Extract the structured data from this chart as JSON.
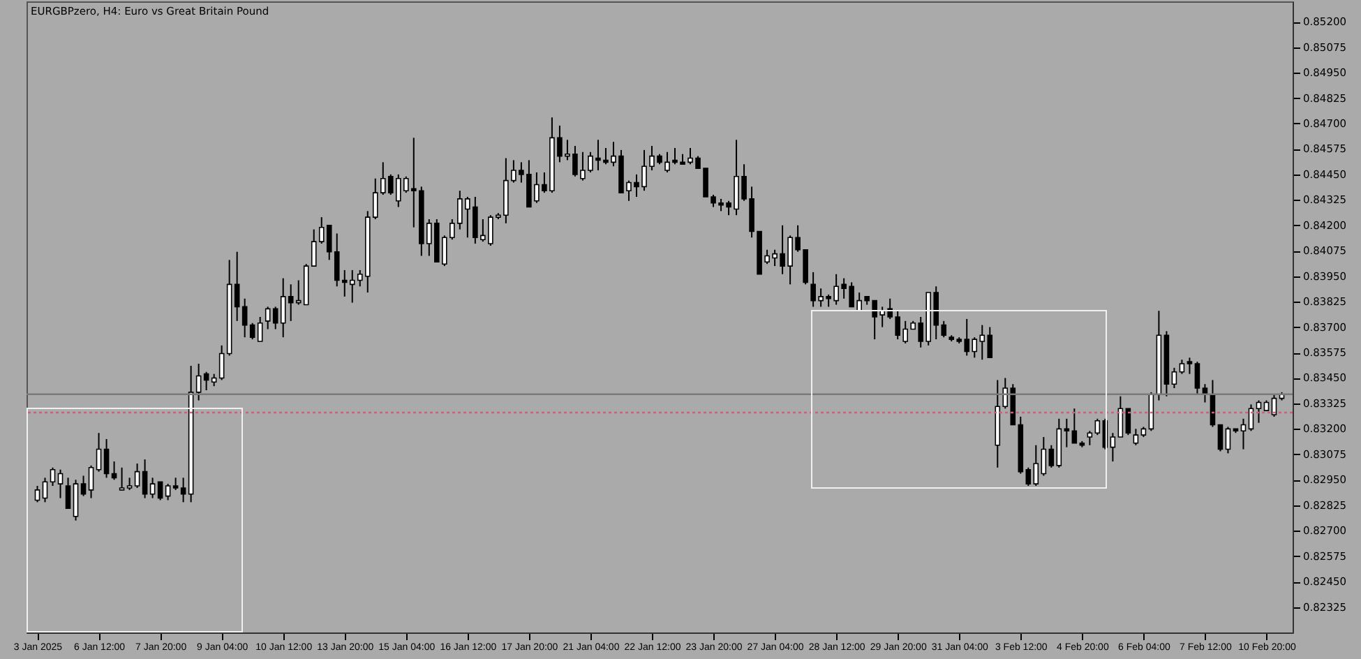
{
  "chart_data": {
    "type": "candlestick",
    "title": "EURGBPzero, H4: Euro vs Great Britain Pound",
    "categories": [
      "3 Jan 2025",
      null,
      null,
      null,
      null,
      null,
      null,
      null,
      "6 Jan 12:00",
      null,
      null,
      null,
      null,
      null,
      null,
      null,
      "7 Jan 20:00",
      null,
      null,
      null,
      null,
      null,
      null,
      null,
      "9 Jan 04:00",
      null,
      null,
      null,
      null,
      null,
      null,
      null,
      "10 Jan 12:00",
      null,
      null,
      null,
      null,
      null,
      null,
      null,
      "13 Jan 20:00",
      null,
      null,
      null,
      null,
      null,
      null,
      null,
      "15 Jan 04:00",
      null,
      null,
      null,
      null,
      null,
      null,
      null,
      "16 Jan 12:00",
      null,
      null,
      null,
      null,
      null,
      null,
      null,
      "17 Jan 20:00",
      null,
      null,
      null,
      null,
      null,
      null,
      null,
      "21 Jan 04:00",
      null,
      null,
      null,
      null,
      null,
      null,
      null,
      "22 Jan 12:00",
      null,
      null,
      null,
      null,
      null,
      null,
      null,
      "23 Jan 20:00",
      null,
      null,
      null,
      null,
      null,
      null,
      null,
      "27 Jan 04:00",
      null,
      null,
      null,
      null,
      null,
      null,
      null,
      "28 Jan 12:00",
      null,
      null,
      null,
      null,
      null,
      null,
      null,
      "29 Jan 20:00",
      null,
      null,
      null,
      null,
      null,
      null,
      null,
      "31 Jan 04:00",
      null,
      null,
      null,
      null,
      null,
      null,
      null,
      "3 Feb 12:00",
      null,
      null,
      null,
      null,
      null,
      null,
      null,
      "4 Feb 20:00",
      null,
      null,
      null,
      null,
      null,
      null,
      null,
      "6 Feb 04:00",
      null,
      null,
      null,
      null,
      null,
      null,
      null,
      "7 Feb 12:00",
      null,
      null,
      null,
      null,
      null,
      null,
      null,
      "10 Feb 20:00",
      null,
      null
    ],
    "ohlc": [
      [
        0.8285,
        0.8292,
        0.8284,
        0.829
      ],
      [
        0.8286,
        0.8296,
        0.8284,
        0.8294
      ],
      [
        0.8294,
        0.8301,
        0.8292,
        0.83
      ],
      [
        0.8293,
        0.83,
        0.8286,
        0.8298
      ],
      [
        0.8292,
        0.8296,
        0.8281,
        0.8281
      ],
      [
        0.8277,
        0.8295,
        0.8275,
        0.8293
      ],
      [
        0.8293,
        0.8297,
        0.8287,
        0.8288
      ],
      [
        0.829,
        0.8302,
        0.8286,
        0.8301
      ],
      [
        0.83,
        0.8318,
        0.8299,
        0.831
      ],
      [
        0.831,
        0.8315,
        0.8296,
        0.8298
      ],
      [
        0.8298,
        0.8304,
        0.8295,
        0.8296
      ],
      [
        0.829,
        0.8301,
        0.829,
        0.8291
      ],
      [
        0.8291,
        0.8296,
        0.829,
        0.8292
      ],
      [
        0.8292,
        0.8303,
        0.8291,
        0.8299
      ],
      [
        0.8299,
        0.8305,
        0.8286,
        0.8288
      ],
      [
        0.8288,
        0.8296,
        0.8286,
        0.8293
      ],
      [
        0.8294,
        0.8294,
        0.8285,
        0.8286
      ],
      [
        0.8287,
        0.8293,
        0.8285,
        0.8292
      ],
      [
        0.8292,
        0.8296,
        0.829,
        0.8291
      ],
      [
        0.8291,
        0.8296,
        0.8284,
        0.8288
      ],
      [
        0.8288,
        0.8351,
        0.8284,
        0.8338
      ],
      [
        0.8338,
        0.8352,
        0.8334,
        0.8346
      ],
      [
        0.8347,
        0.8348,
        0.8339,
        0.8344
      ],
      [
        0.8343,
        0.8347,
        0.8341,
        0.8345
      ],
      [
        0.8345,
        0.8361,
        0.8344,
        0.8357
      ],
      [
        0.8357,
        0.8403,
        0.8356,
        0.8391
      ],
      [
        0.8391,
        0.8407,
        0.8373,
        0.838
      ],
      [
        0.838,
        0.8384,
        0.8365,
        0.8371
      ],
      [
        0.8371,
        0.8372,
        0.8364,
        0.8365
      ],
      [
        0.8363,
        0.8375,
        0.8363,
        0.8372
      ],
      [
        0.8373,
        0.838,
        0.8369,
        0.8379
      ],
      [
        0.8379,
        0.838,
        0.8369,
        0.8372
      ],
      [
        0.8372,
        0.8394,
        0.8365,
        0.8385
      ],
      [
        0.8385,
        0.8391,
        0.8373,
        0.8382
      ],
      [
        0.8382,
        0.8393,
        0.8381,
        0.8383
      ],
      [
        0.8381,
        0.8401,
        0.8381,
        0.84
      ],
      [
        0.84,
        0.8418,
        0.84,
        0.8412
      ],
      [
        0.8412,
        0.8424,
        0.8411,
        0.8419
      ],
      [
        0.842,
        0.842,
        0.8403,
        0.8407
      ],
      [
        0.8407,
        0.8416,
        0.839,
        0.8393
      ],
      [
        0.8393,
        0.8398,
        0.8385,
        0.8392
      ],
      [
        0.8391,
        0.8398,
        0.8382,
        0.8393
      ],
      [
        0.8393,
        0.8398,
        0.839,
        0.8396
      ],
      [
        0.8395,
        0.8427,
        0.8387,
        0.8424
      ],
      [
        0.8424,
        0.8443,
        0.8423,
        0.8436
      ],
      [
        0.8436,
        0.8451,
        0.8435,
        0.8443
      ],
      [
        0.8444,
        0.8445,
        0.8435,
        0.8436
      ],
      [
        0.8432,
        0.8445,
        0.8429,
        0.8443
      ],
      [
        0.8437,
        0.8444,
        0.8436,
        0.8443
      ],
      [
        0.8438,
        0.8463,
        0.8419,
        0.8437
      ],
      [
        0.8437,
        0.8439,
        0.8405,
        0.8411
      ],
      [
        0.8411,
        0.8423,
        0.8405,
        0.8421
      ],
      [
        0.8421,
        0.8423,
        0.8402,
        0.8402
      ],
      [
        0.8401,
        0.8415,
        0.84,
        0.8414
      ],
      [
        0.8414,
        0.8423,
        0.8413,
        0.8421
      ],
      [
        0.8421,
        0.8437,
        0.8418,
        0.8433
      ],
      [
        0.8428,
        0.8434,
        0.8414,
        0.8433
      ],
      [
        0.8429,
        0.8434,
        0.8411,
        0.8414
      ],
      [
        0.8413,
        0.8423,
        0.8412,
        0.8415
      ],
      [
        0.8411,
        0.8425,
        0.841,
        0.8424
      ],
      [
        0.8424,
        0.8426,
        0.8423,
        0.8425
      ],
      [
        0.8425,
        0.8453,
        0.8421,
        0.8442
      ],
      [
        0.8442,
        0.8452,
        0.8441,
        0.8447
      ],
      [
        0.8447,
        0.8451,
        0.8441,
        0.8445
      ],
      [
        0.8445,
        0.8452,
        0.8429,
        0.8429
      ],
      [
        0.8432,
        0.8446,
        0.8431,
        0.844
      ],
      [
        0.844,
        0.8446,
        0.8436,
        0.8437
      ],
      [
        0.8437,
        0.8473,
        0.8436,
        0.8463
      ],
      [
        0.8463,
        0.8469,
        0.8451,
        0.8454
      ],
      [
        0.8454,
        0.8462,
        0.8452,
        0.8455
      ],
      [
        0.8455,
        0.8459,
        0.8444,
        0.8445
      ],
      [
        0.8443,
        0.8456,
        0.8442,
        0.8447
      ],
      [
        0.8447,
        0.8456,
        0.8446,
        0.8454
      ],
      [
        0.8453,
        0.8462,
        0.8447,
        0.8452
      ],
      [
        0.8452,
        0.8458,
        0.845,
        0.8451
      ],
      [
        0.8451,
        0.8461,
        0.8449,
        0.8454
      ],
      [
        0.8454,
        0.8457,
        0.8436,
        0.8436
      ],
      [
        0.8437,
        0.8442,
        0.8432,
        0.8441
      ],
      [
        0.8441,
        0.8445,
        0.8434,
        0.8439
      ],
      [
        0.8439,
        0.8457,
        0.8437,
        0.8449
      ],
      [
        0.8449,
        0.8459,
        0.8447,
        0.8454
      ],
      [
        0.8454,
        0.8455,
        0.845,
        0.8451
      ],
      [
        0.8447,
        0.8456,
        0.8446,
        0.8451
      ],
      [
        0.8452,
        0.8458,
        0.845,
        0.8451
      ],
      [
        0.8451,
        0.8455,
        0.845,
        0.845
      ],
      [
        0.8451,
        0.8458,
        0.845,
        0.8453
      ],
      [
        0.8453,
        0.8454,
        0.8448,
        0.8448
      ],
      [
        0.8448,
        0.8448,
        0.8434,
        0.8434
      ],
      [
        0.8434,
        0.8435,
        0.8429,
        0.8431
      ],
      [
        0.8431,
        0.8433,
        0.8427,
        0.843
      ],
      [
        0.8431,
        0.8432,
        0.8425,
        0.8429
      ],
      [
        0.8428,
        0.8462,
        0.8425,
        0.8444
      ],
      [
        0.8444,
        0.845,
        0.8432,
        0.8433
      ],
      [
        0.8433,
        0.8439,
        0.8414,
        0.8417
      ],
      [
        0.8417,
        0.8417,
        0.8396,
        0.8396
      ],
      [
        0.8402,
        0.8408,
        0.8401,
        0.8405
      ],
      [
        0.8404,
        0.8408,
        0.84,
        0.8406
      ],
      [
        0.8406,
        0.842,
        0.8396,
        0.84
      ],
      [
        0.84,
        0.8415,
        0.8391,
        0.8414
      ],
      [
        0.8414,
        0.842,
        0.8407,
        0.8408
      ],
      [
        0.8408,
        0.8408,
        0.8391,
        0.8392
      ],
      [
        0.8391,
        0.8397,
        0.838,
        0.8383
      ],
      [
        0.8383,
        0.8389,
        0.838,
        0.8385
      ],
      [
        0.8385,
        0.8386,
        0.838,
        0.8384
      ],
      [
        0.8383,
        0.8396,
        0.8381,
        0.839
      ],
      [
        0.8391,
        0.8394,
        0.8384,
        0.8389
      ],
      [
        0.839,
        0.8392,
        0.838,
        0.838
      ],
      [
        0.8378,
        0.8387,
        0.8378,
        0.8383
      ],
      [
        0.8385,
        0.8385,
        0.8381,
        0.8383
      ],
      [
        0.8383,
        0.8383,
        0.8364,
        0.8375
      ],
      [
        0.8376,
        0.838,
        0.837,
        0.8378
      ],
      [
        0.8379,
        0.8384,
        0.8374,
        0.8375
      ],
      [
        0.8375,
        0.8378,
        0.8364,
        0.8366
      ],
      [
        0.8363,
        0.8373,
        0.8362,
        0.8369
      ],
      [
        0.8369,
        0.8373,
        0.8369,
        0.8372
      ],
      [
        0.8372,
        0.8375,
        0.836,
        0.8363
      ],
      [
        0.8363,
        0.8387,
        0.8361,
        0.8387
      ],
      [
        0.8387,
        0.839,
        0.8364,
        0.8371
      ],
      [
        0.8371,
        0.8373,
        0.8365,
        0.8366
      ],
      [
        0.8365,
        0.8366,
        0.8363,
        0.8364
      ],
      [
        0.8364,
        0.8365,
        0.8362,
        0.8363
      ],
      [
        0.8364,
        0.8374,
        0.8356,
        0.8358
      ],
      [
        0.8358,
        0.8365,
        0.8355,
        0.8364
      ],
      [
        0.8363,
        0.8371,
        0.8354,
        0.8366
      ],
      [
        0.8366,
        0.837,
        0.8355,
        0.8355
      ],
      [
        0.8312,
        0.8344,
        0.8301,
        0.8331
      ],
      [
        0.8331,
        0.8345,
        0.833,
        0.834
      ],
      [
        0.834,
        0.8342,
        0.8322,
        0.8322
      ],
      [
        0.8322,
        0.8326,
        0.8298,
        0.8299
      ],
      [
        0.83,
        0.8301,
        0.8292,
        0.8293
      ],
      [
        0.8293,
        0.8312,
        0.8292,
        0.8303
      ],
      [
        0.8298,
        0.8316,
        0.8297,
        0.831
      ],
      [
        0.831,
        0.8312,
        0.8301,
        0.8302
      ],
      [
        0.8302,
        0.8325,
        0.8301,
        0.832
      ],
      [
        0.832,
        0.8325,
        0.8311,
        0.8319
      ],
      [
        0.8319,
        0.833,
        0.8313,
        0.8313
      ],
      [
        0.8313,
        0.8314,
        0.8311,
        0.8312
      ],
      [
        0.8316,
        0.8319,
        0.8312,
        0.8318
      ],
      [
        0.8318,
        0.8325,
        0.8317,
        0.8324
      ],
      [
        0.8324,
        0.8325,
        0.831,
        0.8311
      ],
      [
        0.8311,
        0.8318,
        0.8304,
        0.8316
      ],
      [
        0.8316,
        0.8336,
        0.8316,
        0.833
      ],
      [
        0.833,
        0.833,
        0.8317,
        0.8318
      ],
      [
        0.8313,
        0.832,
        0.8312,
        0.8317
      ],
      [
        0.8317,
        0.8321,
        0.8316,
        0.832
      ],
      [
        0.832,
        0.8338,
        0.8319,
        0.8337
      ],
      [
        0.8337,
        0.8378,
        0.8334,
        0.8366
      ],
      [
        0.8366,
        0.8368,
        0.8336,
        0.8342
      ],
      [
        0.8342,
        0.835,
        0.834,
        0.8348
      ],
      [
        0.8348,
        0.8354,
        0.8347,
        0.8352
      ],
      [
        0.8353,
        0.8355,
        0.8347,
        0.8352
      ],
      [
        0.8352,
        0.8353,
        0.8337,
        0.834
      ],
      [
        0.834,
        0.8342,
        0.8333,
        0.8337
      ],
      [
        0.8337,
        0.8344,
        0.8321,
        0.8322
      ],
      [
        0.8322,
        0.8322,
        0.8309,
        0.831
      ],
      [
        0.831,
        0.8321,
        0.8308,
        0.832
      ],
      [
        0.832,
        0.832,
        0.8318,
        0.8319
      ],
      [
        0.8319,
        0.8325,
        0.831,
        0.8322
      ],
      [
        0.832,
        0.8332,
        0.8319,
        0.833
      ],
      [
        0.833,
        0.8334,
        0.8323,
        0.8333
      ],
      [
        0.8329,
        0.8334,
        0.8329,
        0.8333
      ],
      [
        0.8327,
        0.8337,
        0.8326,
        0.8335
      ],
      [
        0.8335,
        0.8338,
        0.8334,
        0.8337
      ]
    ],
    "ylim": [
      0.822,
      0.853
    ],
    "yticks": [
      {
        "value": 0.852,
        "label": "0.85200"
      },
      {
        "value": 0.85075,
        "label": "0.85075"
      },
      {
        "value": 0.8495,
        "label": "0.84950"
      },
      {
        "value": 0.84825,
        "label": "0.84825"
      },
      {
        "value": 0.847,
        "label": "0.84700"
      },
      {
        "value": 0.84575,
        "label": "0.84575"
      },
      {
        "value": 0.8445,
        "label": "0.84450"
      },
      {
        "value": 0.84325,
        "label": "0.84325"
      },
      {
        "value": 0.842,
        "label": "0.84200"
      },
      {
        "value": 0.84075,
        "label": "0.84075"
      },
      {
        "value": 0.8395,
        "label": "0.83950"
      },
      {
        "value": 0.83825,
        "label": "0.83825"
      },
      {
        "value": 0.837,
        "label": "0.83700"
      },
      {
        "value": 0.83575,
        "label": "0.83575"
      },
      {
        "value": 0.8345,
        "label": "0.83450"
      },
      {
        "value": 0.83325,
        "label": "0.83325"
      },
      {
        "value": 0.832,
        "label": "0.83200"
      },
      {
        "value": 0.83075,
        "label": "0.83075"
      },
      {
        "value": 0.8295,
        "label": "0.82950"
      },
      {
        "value": 0.82825,
        "label": "0.82825"
      },
      {
        "value": 0.827,
        "label": "0.82700"
      },
      {
        "value": 0.82575,
        "label": "0.82575"
      },
      {
        "value": 0.8245,
        "label": "0.82450"
      },
      {
        "value": 0.82325,
        "label": "0.82325"
      }
    ],
    "ref_lines": [
      {
        "axis": "y",
        "value": 0.8337,
        "color": "#7a7a7a",
        "line_style": "solid"
      },
      {
        "axis": "y",
        "value": 0.8328,
        "color": "#d0607a",
        "line_style": "dotted"
      }
    ]
  }
}
